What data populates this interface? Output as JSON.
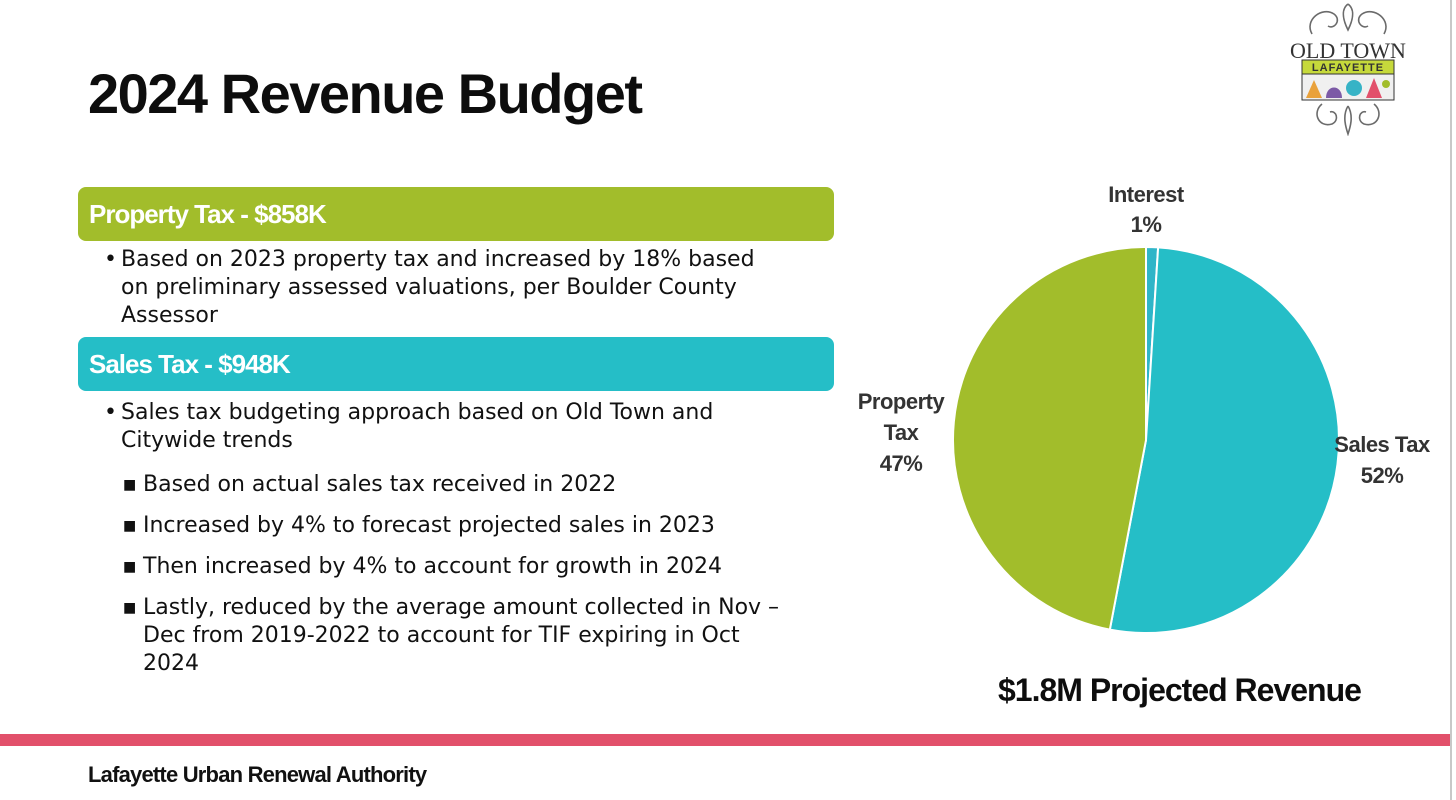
{
  "slide": {
    "title": "2024 Revenue Budget",
    "footer": "Lafayette Urban Renewal Authority",
    "logo": {
      "line1": "OLD TOWN",
      "line2": "LAFAYETTE"
    }
  },
  "property_tax": {
    "header": "Property Tax - $858K",
    "bullets": [
      {
        "lines": [
          "Based on 2023 property tax and increased by 18% based",
          "on preliminary assessed valuations, per Boulder County",
          "Assessor"
        ]
      }
    ]
  },
  "sales_tax": {
    "header": "Sales Tax - $948K",
    "bullet": {
      "lines": [
        "Sales tax budgeting approach based on Old Town and",
        "Citywide trends"
      ]
    },
    "sub_bullets": [
      {
        "lines": [
          "Based on actual sales tax received in 2022"
        ]
      },
      {
        "lines": [
          "Increased by 4% to forecast projected sales in 2023"
        ]
      },
      {
        "lines": [
          "Then increased by 4% to account for growth in 2024"
        ]
      },
      {
        "lines": [
          "Lastly, reduced by the average amount collected in Nov –",
          "Dec from 2019-2022 to account for TIF expiring in Oct",
          "2024"
        ]
      }
    ]
  },
  "chart_data": {
    "type": "pie",
    "title": "$1.8M Projected Revenue",
    "slices": [
      {
        "label": "Interest",
        "value": 1,
        "value_label": "1%",
        "color": "#2fb5c8"
      },
      {
        "label": "Sales Tax",
        "value": 52,
        "value_label": "52%",
        "color": "#25bec7"
      },
      {
        "label": "Property Tax",
        "label_lines": [
          "Property",
          "Tax"
        ],
        "value": 47,
        "value_label": "47%",
        "color": "#a2bd2b"
      }
    ]
  },
  "colors": {
    "property_green": "#a2bd2b",
    "sales_teal": "#25bec7",
    "footer_red": "#e2506b"
  }
}
